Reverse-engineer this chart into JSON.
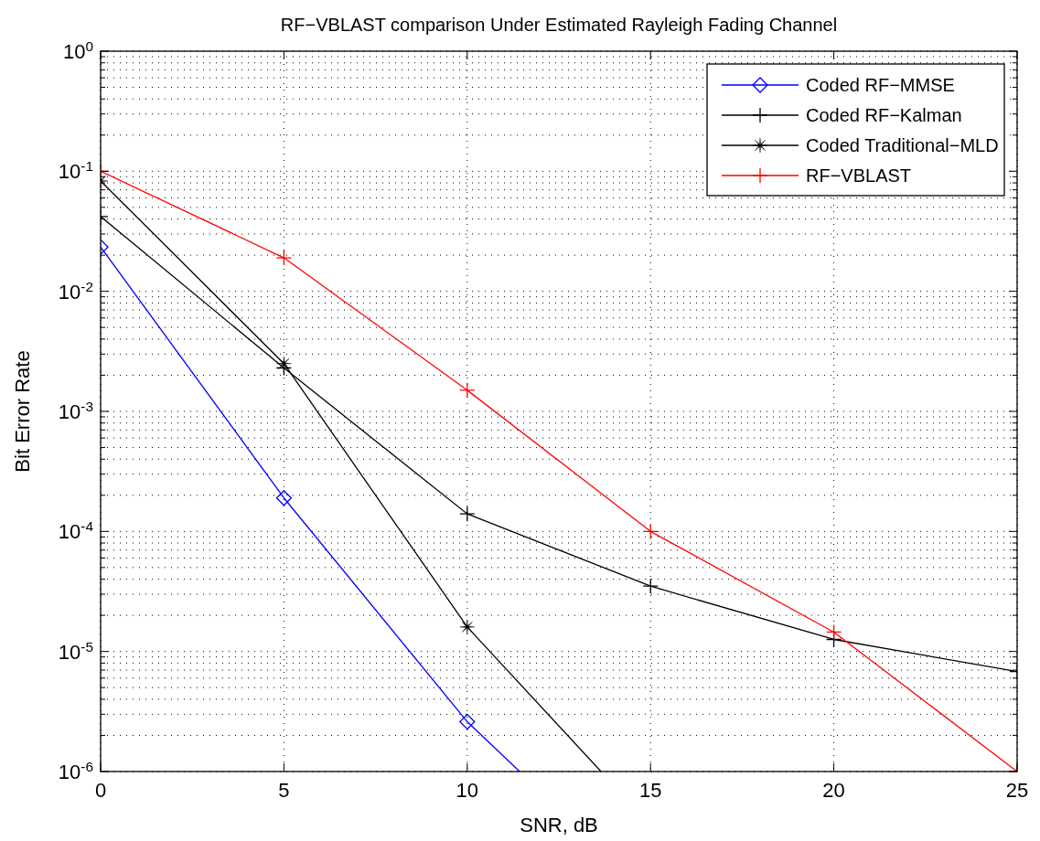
{
  "chart_data": {
    "type": "line",
    "title": "RF−VBLAST comparison Under  Estimated Rayleigh Fading Channel",
    "xlabel": "SNR, dB",
    "ylabel": "Bit Error Rate",
    "x": [
      0,
      5,
      10,
      15,
      20,
      25
    ],
    "series": [
      {
        "name": "Coded RF−MMSE",
        "color": "#0000ff",
        "marker": "diamond",
        "x": [
          0,
          5,
          10
        ],
        "values": [
          0.0234,
          0.00019,
          2.6e-06
        ]
      },
      {
        "name": "Coded RF−Kalman",
        "color": "#000000",
        "marker": "cross",
        "values": [
          0.042,
          0.0023,
          0.00014,
          3.5e-05,
          1.26e-05,
          6.8e-06
        ]
      },
      {
        "name": "Coded Traditional−MLD",
        "color": "#000000",
        "marker": "star",
        "x": [
          0,
          5,
          10
        ],
        "values": [
          0.083,
          0.0025,
          1.6e-05
        ]
      },
      {
        "name": "RF−VBLAST",
        "color": "#ff0000",
        "marker": "cross",
        "values": [
          0.1,
          0.019,
          0.0015,
          0.0001,
          1.45e-05,
          1e-06
        ]
      },
      {
        "color": "#0000ff",
        "marker": "none",
        "x": [
          10,
          11.43
        ],
        "values": [
          2.6e-06,
          1e-06
        ]
      },
      {
        "color": "#000000",
        "marker": "none",
        "x": [
          10,
          13.65
        ],
        "values": [
          1.6e-05,
          1e-06
        ]
      }
    ],
    "xlim": [
      0,
      25
    ],
    "xticks": [
      0,
      5,
      10,
      15,
      20,
      25
    ],
    "ylim": [
      1e-06,
      1
    ],
    "log": "y",
    "yticks": [
      {
        "value": 1e-06,
        "label": "10$^{-6}$"
      },
      {
        "value": 1e-05,
        "label": "10$^{-5}$"
      },
      {
        "value": 0.0001,
        "label": "10$^{-4}$"
      },
      {
        "value": 0.001,
        "label": "10$^{-3}$"
      },
      {
        "value": 0.01,
        "label": "10$^{-2}$"
      },
      {
        "value": 0.1,
        "label": "10$^{-1}$"
      },
      {
        "value": 1,
        "label": "10$^{0}$"
      }
    ],
    "grid": true,
    "legend": "top right",
    "line_style": "solid"
  }
}
